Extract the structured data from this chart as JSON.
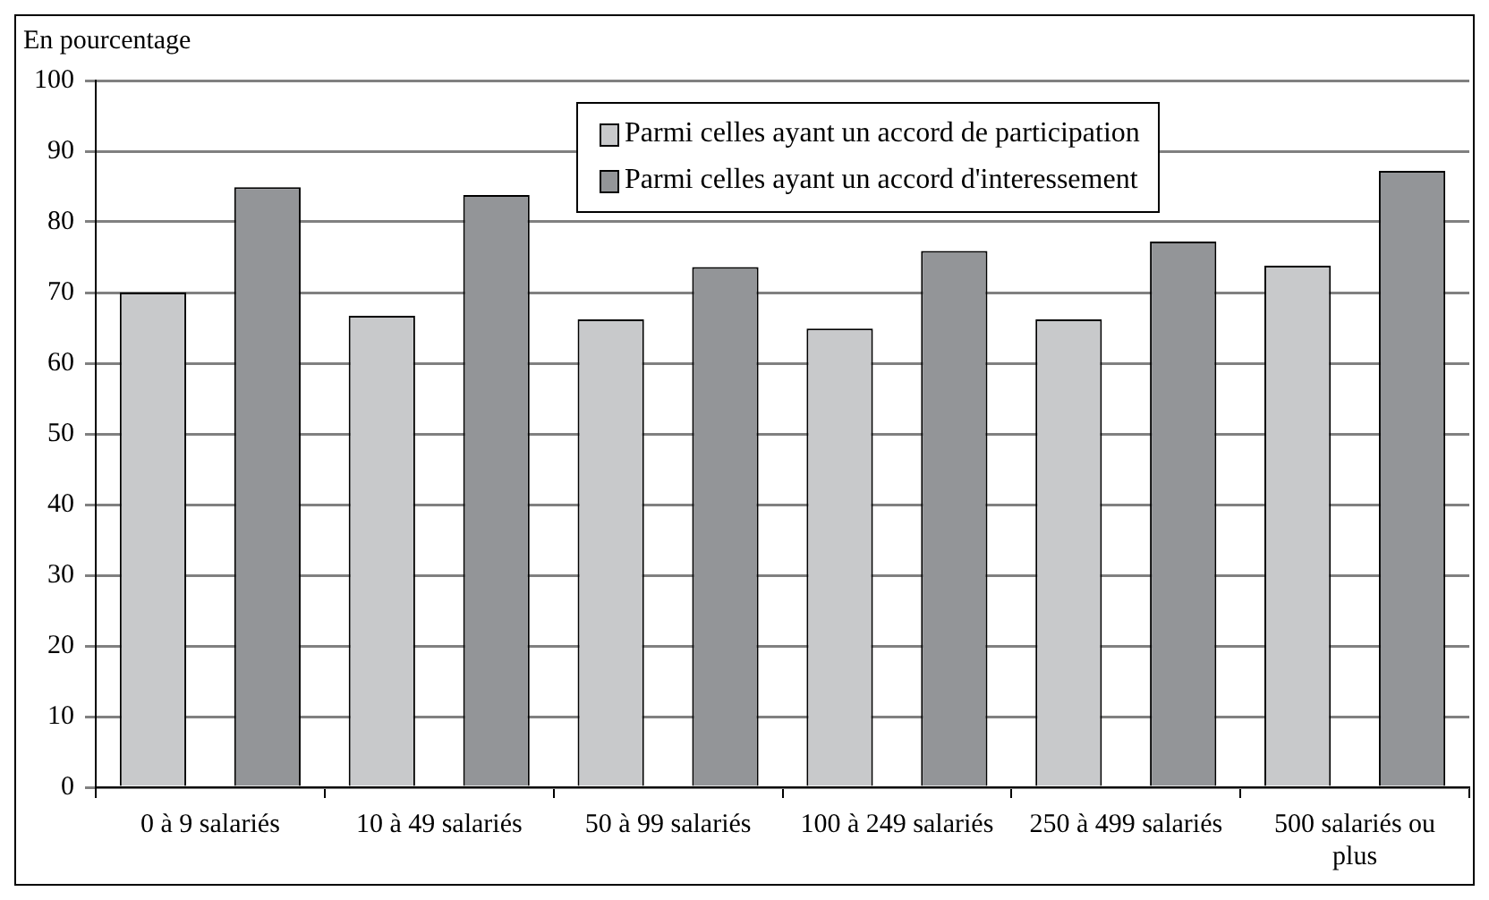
{
  "chart_data": {
    "type": "bar",
    "ylabel": "En pourcentage",
    "categories": [
      "0 à 9 salariés",
      "10 à 49 salariés",
      "50 à 99 salariés",
      "100 à 249 salariés",
      "250 à 499 salariés",
      "500 salariés ou plus"
    ],
    "series": [
      {
        "name": "Parmi celles ayant un accord de participation",
        "color": "#c8c9cb",
        "values": [
          70,
          66.7,
          66.2,
          64.9,
          66.2,
          73.8
        ]
      },
      {
        "name": "Parmi celles ayant un accord d'interessement",
        "color": "#939598",
        "values": [
          84.9,
          83.8,
          73.6,
          75.9,
          77.2,
          87.2
        ]
      }
    ],
    "ylim": [
      0,
      100
    ],
    "yticks": [
      0,
      10,
      20,
      30,
      40,
      50,
      60,
      70,
      80,
      90,
      100
    ],
    "grid": "y",
    "legend": "top right"
  }
}
